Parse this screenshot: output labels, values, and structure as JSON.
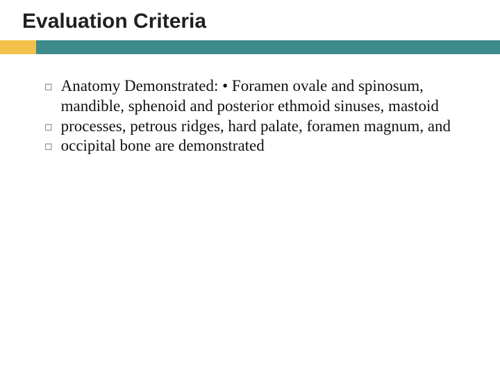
{
  "title": "Evaluation Criteria",
  "accent": {
    "yellow": "#f3c14b",
    "teal": "#3e8a8c"
  },
  "bullets": [
    {
      "marker": "◻",
      "text": "Anatomy Demonstrated: • Foramen ovale and spinosum, mandible, sphenoid and posterior ethmoid sinuses, mastoid"
    },
    {
      "marker": "◻",
      "text": "processes, petrous ridges, hard palate, foramen magnum, and"
    },
    {
      "marker": "◻",
      "text": "occipital bone are demonstrated"
    }
  ],
  "text_color": "#111111",
  "title_color": "#202020",
  "title_fontsize": 30,
  "body_fontsize": 23,
  "background_color": "#ffffff"
}
